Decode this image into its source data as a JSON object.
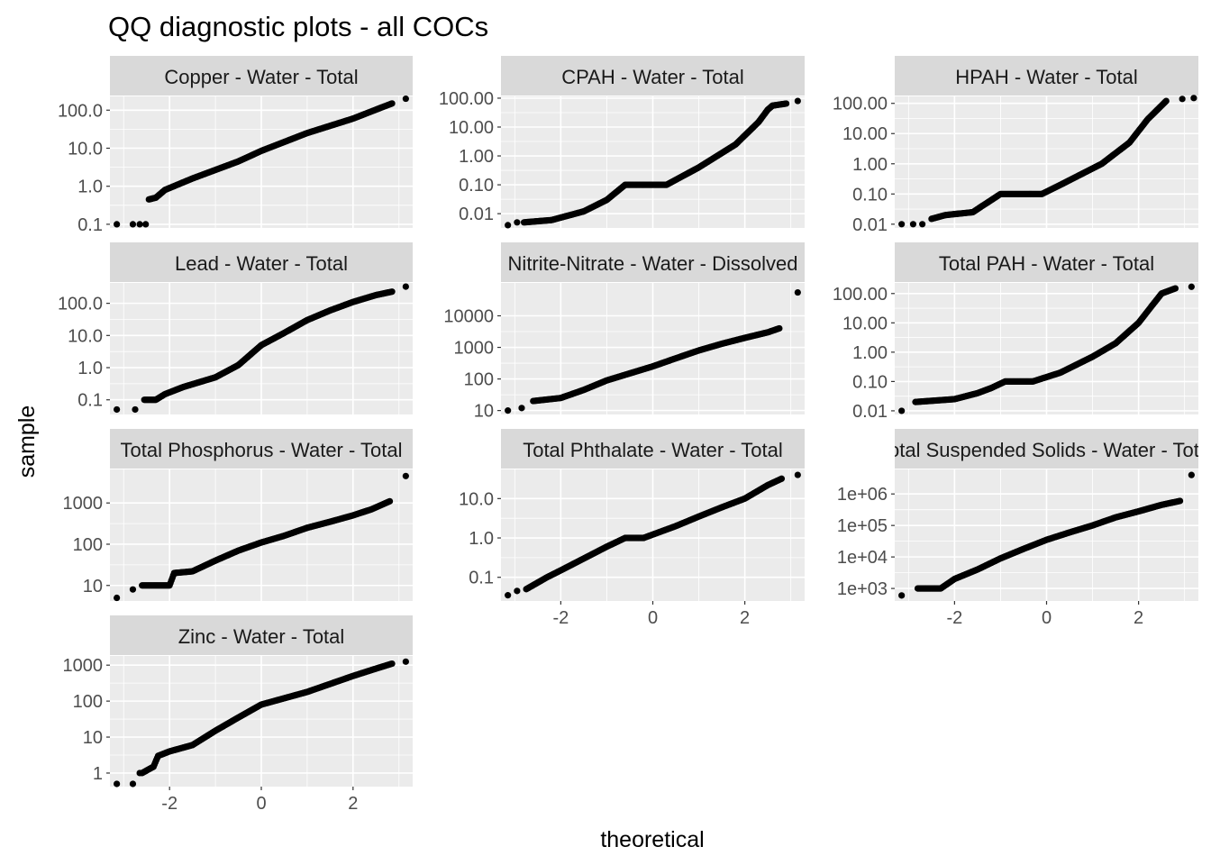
{
  "chart_data": {
    "type": "scatter",
    "title": "QQ diagnostic plots - all COCs",
    "xlabel": "theoretical",
    "ylabel": "sample",
    "y_scale": "log10",
    "x_range": [
      -3.3,
      3.3
    ],
    "x_ticks": [
      -2,
      0,
      2
    ],
    "x_tick_labels": [
      "-2",
      "0",
      "2"
    ],
    "colors": {
      "panel_bg": "#ebebeb",
      "grid_major": "#ffffff",
      "strip_bg": "#d9d9d9",
      "point": "#000000"
    },
    "panels": [
      {
        "label": "Copper - Water - Total",
        "ylim": [
          0.08,
          230
        ],
        "y_ticks": [
          0.1,
          1,
          10,
          100
        ],
        "y_tick_labels": [
          "0.1",
          "1.0",
          "10.0",
          "100.0"
        ],
        "curve": [
          [
            -2.45,
            0.45
          ],
          [
            -2.3,
            0.5
          ],
          [
            -2.1,
            0.8
          ],
          [
            -1.5,
            1.6
          ],
          [
            -0.5,
            4.5
          ],
          [
            0,
            8.5
          ],
          [
            1,
            25
          ],
          [
            2,
            60
          ],
          [
            2.6,
            115
          ],
          [
            2.85,
            150
          ]
        ],
        "outliers": [
          [
            -3.15,
            0.1
          ],
          [
            -2.8,
            0.1
          ],
          [
            -2.65,
            0.1
          ],
          [
            -2.52,
            0.1
          ],
          [
            3.15,
            200
          ]
        ]
      },
      {
        "label": "CPAH - Water - Total",
        "ylim": [
          0.0032,
          115
        ],
        "y_ticks": [
          0.01,
          0.1,
          1,
          10,
          100
        ],
        "y_tick_labels": [
          "0.01",
          "0.10",
          "1.00",
          "10.00",
          "100.00"
        ],
        "curve": [
          [
            -2.8,
            0.005
          ],
          [
            -2.2,
            0.006
          ],
          [
            -1.5,
            0.012
          ],
          [
            -1,
            0.03
          ],
          [
            -0.6,
            0.1
          ],
          [
            0.3,
            0.1
          ],
          [
            1,
            0.4
          ],
          [
            1.8,
            2.5
          ],
          [
            2.3,
            15
          ],
          [
            2.5,
            40
          ],
          [
            2.6,
            55
          ],
          [
            2.9,
            65
          ]
        ],
        "outliers": [
          [
            -3.15,
            0.004
          ],
          [
            -2.95,
            0.005
          ],
          [
            3.15,
            80
          ]
        ]
      },
      {
        "label": "HPAH - Water - Total",
        "ylim": [
          0.0075,
          170
        ],
        "y_ticks": [
          0.01,
          0.1,
          1,
          10,
          100
        ],
        "y_tick_labels": [
          "0.01",
          "0.10",
          "1.00",
          "10.00",
          "100.00"
        ],
        "curve": [
          [
            -2.5,
            0.015
          ],
          [
            -2.2,
            0.02
          ],
          [
            -1.6,
            0.025
          ],
          [
            -1.4,
            0.04
          ],
          [
            -1.3,
            0.05
          ],
          [
            -1,
            0.1
          ],
          [
            -0.1,
            0.1
          ],
          [
            0.3,
            0.2
          ],
          [
            1.2,
            1
          ],
          [
            1.8,
            5
          ],
          [
            2.2,
            30
          ],
          [
            2.4,
            60
          ],
          [
            2.6,
            120
          ]
        ],
        "outliers": [
          [
            -3.15,
            0.01
          ],
          [
            -2.9,
            0.01
          ],
          [
            -2.7,
            0.01
          ],
          [
            2.95,
            140
          ],
          [
            3.2,
            150
          ]
        ]
      },
      {
        "label": "Lead - Water - Total",
        "ylim": [
          0.035,
          430
        ],
        "y_ticks": [
          0.1,
          1,
          10,
          100
        ],
        "y_tick_labels": [
          "0.1",
          "1.0",
          "10.0",
          "100.0"
        ],
        "curve": [
          [
            -2.55,
            0.1
          ],
          [
            -2.3,
            0.1
          ],
          [
            -2.1,
            0.15
          ],
          [
            -1.7,
            0.25
          ],
          [
            -1,
            0.5
          ],
          [
            -0.5,
            1.2
          ],
          [
            0,
            5
          ],
          [
            0.5,
            12
          ],
          [
            1,
            30
          ],
          [
            1.5,
            60
          ],
          [
            2,
            110
          ],
          [
            2.5,
            180
          ],
          [
            2.85,
            230
          ]
        ],
        "outliers": [
          [
            -3.15,
            0.05
          ],
          [
            -2.75,
            0.05
          ],
          [
            3.15,
            330
          ]
        ]
      },
      {
        "label": "Nitrite-Nitrate - Water - Dissolved",
        "ylim": [
          7.5,
          110000
        ],
        "y_ticks": [
          10,
          100,
          1000,
          10000
        ],
        "y_tick_labels": [
          "10",
          "100",
          "1000",
          "10000"
        ],
        "curve": [
          [
            -2.6,
            20
          ],
          [
            -2,
            25
          ],
          [
            -1.5,
            45
          ],
          [
            -1,
            90
          ],
          [
            -0.5,
            150
          ],
          [
            0,
            250
          ],
          [
            0.5,
            450
          ],
          [
            1,
            800
          ],
          [
            1.5,
            1300
          ],
          [
            2,
            2000
          ],
          [
            2.5,
            3000
          ],
          [
            2.75,
            4000
          ]
        ],
        "outliers": [
          [
            -3.15,
            10
          ],
          [
            -2.85,
            12
          ],
          [
            3.15,
            55000
          ]
        ]
      },
      {
        "label": "Total PAH - Water - Total",
        "ylim": [
          0.0075,
          230
        ],
        "y_ticks": [
          0.01,
          0.1,
          1,
          10,
          100
        ],
        "y_tick_labels": [
          "0.01",
          "0.10",
          "1.00",
          "10.00",
          "100.00"
        ],
        "curve": [
          [
            -2.85,
            0.02
          ],
          [
            -2,
            0.025
          ],
          [
            -1.5,
            0.04
          ],
          [
            -1.2,
            0.06
          ],
          [
            -0.9,
            0.1
          ],
          [
            -0.3,
            0.1
          ],
          [
            0.3,
            0.2
          ],
          [
            1,
            0.7
          ],
          [
            1.5,
            2
          ],
          [
            2,
            10
          ],
          [
            2.3,
            40
          ],
          [
            2.5,
            100
          ],
          [
            2.8,
            150
          ]
        ],
        "outliers": [
          [
            -3.15,
            0.01
          ],
          [
            3.15,
            170
          ]
        ]
      },
      {
        "label": "Total Phosphorus - Water - Total",
        "ylim": [
          4.2,
          6500
        ],
        "y_ticks": [
          10,
          100,
          1000
        ],
        "y_tick_labels": [
          "10",
          "100",
          "1000"
        ],
        "curve": [
          [
            -2.6,
            10
          ],
          [
            -2,
            10
          ],
          [
            -1.9,
            20
          ],
          [
            -1.5,
            22
          ],
          [
            -1,
            40
          ],
          [
            -0.5,
            70
          ],
          [
            0,
            110
          ],
          [
            0.5,
            160
          ],
          [
            1,
            250
          ],
          [
            1.5,
            350
          ],
          [
            2,
            500
          ],
          [
            2.4,
            700
          ],
          [
            2.8,
            1100
          ]
        ],
        "outliers": [
          [
            -3.15,
            5
          ],
          [
            -2.8,
            8
          ],
          [
            3.15,
            4500
          ]
        ]
      },
      {
        "label": "Total Phthalate - Water - Total",
        "ylim": [
          0.025,
          55
        ],
        "y_ticks": [
          0.1,
          1,
          10
        ],
        "y_tick_labels": [
          "0.1",
          "1.0",
          "10.0"
        ],
        "curve": [
          [
            -2.75,
            0.05
          ],
          [
            -2.3,
            0.1
          ],
          [
            -2,
            0.15
          ],
          [
            -1.5,
            0.3
          ],
          [
            -1,
            0.6
          ],
          [
            -0.6,
            1
          ],
          [
            -0.2,
            1
          ],
          [
            0.5,
            2
          ],
          [
            1,
            3.5
          ],
          [
            1.5,
            6
          ],
          [
            2,
            10
          ],
          [
            2.5,
            22
          ],
          [
            2.8,
            32
          ]
        ],
        "outliers": [
          [
            -3.15,
            0.035
          ],
          [
            -2.95,
            0.045
          ],
          [
            3.15,
            40
          ]
        ]
      },
      {
        "label": "Total Suspended Solids - Water - Total",
        "ylim": [
          400,
          6000000
        ],
        "y_ticks": [
          1000,
          10000,
          100000,
          1000000
        ],
        "y_tick_labels": [
          "1e+03",
          "1e+04",
          "1e+05",
          "1e+06"
        ],
        "curve": [
          [
            -2.8,
            1000
          ],
          [
            -2.3,
            1000
          ],
          [
            -2,
            2000
          ],
          [
            -1.5,
            4000
          ],
          [
            -1,
            9000
          ],
          [
            -0.5,
            18000
          ],
          [
            0,
            35000
          ],
          [
            0.5,
            60000
          ],
          [
            1,
            100000
          ],
          [
            1.5,
            180000
          ],
          [
            2,
            280000
          ],
          [
            2.5,
            450000
          ],
          [
            2.9,
            600000
          ]
        ],
        "outliers": [
          [
            -3.15,
            600
          ],
          [
            3.15,
            4000000
          ]
        ]
      },
      {
        "label": "Zinc - Water - Total",
        "ylim": [
          0.42,
          1800
        ],
        "y_ticks": [
          1,
          10,
          100,
          1000
        ],
        "y_tick_labels": [
          "1",
          "10",
          "100",
          "1000"
        ],
        "curve": [
          [
            -2.6,
            1
          ],
          [
            -2.35,
            1.5
          ],
          [
            -2.25,
            3
          ],
          [
            -2,
            4
          ],
          [
            -1.5,
            6
          ],
          [
            -1,
            15
          ],
          [
            -0.5,
            35
          ],
          [
            0,
            80
          ],
          [
            0.5,
            120
          ],
          [
            1,
            180
          ],
          [
            1.5,
            300
          ],
          [
            2,
            500
          ],
          [
            2.5,
            800
          ],
          [
            2.85,
            1100
          ]
        ],
        "outliers": [
          [
            -3.15,
            0.5
          ],
          [
            -2.8,
            0.5
          ],
          [
            -2.65,
            1
          ],
          [
            3.15,
            1250
          ]
        ]
      }
    ]
  }
}
